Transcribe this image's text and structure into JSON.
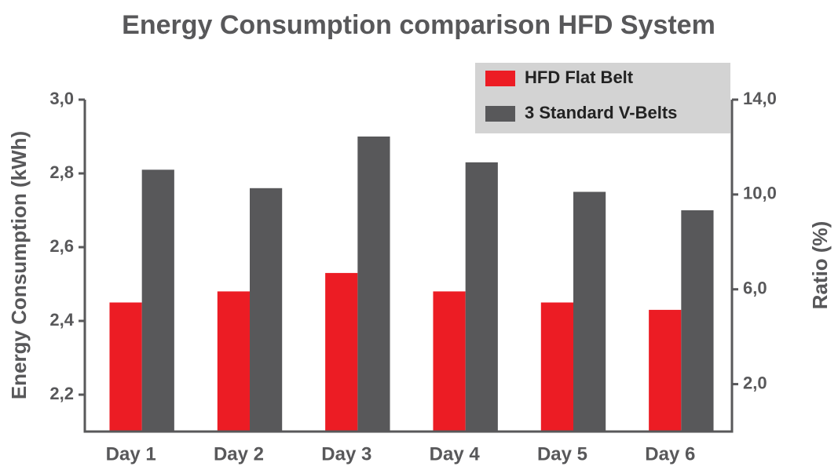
{
  "chart_data": {
    "type": "bar",
    "title": "Energy Consumption comparison HFD System",
    "ylabel": "Energy Consumption (kWh)",
    "y2label": "Ratio (%)",
    "categories": [
      "Day 1",
      "Day 2",
      "Day 3",
      "Day 4",
      "Day 5",
      "Day 6"
    ],
    "series": [
      {
        "name": "HFD Flat Belt",
        "color": "#ec1c24",
        "values": [
          2.45,
          2.48,
          2.53,
          2.48,
          2.45,
          2.43
        ]
      },
      {
        "name": "3 Standard V-Belts",
        "color": "#58585a",
        "values": [
          2.81,
          2.76,
          2.9,
          2.83,
          2.75,
          2.7
        ]
      }
    ],
    "ylim": [
      2.1,
      3.0
    ],
    "yticks": [
      {
        "value": 2.2,
        "label": "2,2"
      },
      {
        "value": 2.4,
        "label": "2,4"
      },
      {
        "value": 2.6,
        "label": "2,6"
      },
      {
        "value": 2.8,
        "label": "2,8"
      },
      {
        "value": 3.0,
        "label": "3,0"
      }
    ],
    "y2lim": [
      0,
      14
    ],
    "y2ticks": [
      {
        "value": 2,
        "label": "2,0"
      },
      {
        "value": 6,
        "label": "6,0"
      },
      {
        "value": 10,
        "label": "10,0"
      },
      {
        "value": 14,
        "label": "14,0"
      }
    ],
    "legend": "top-right"
  }
}
